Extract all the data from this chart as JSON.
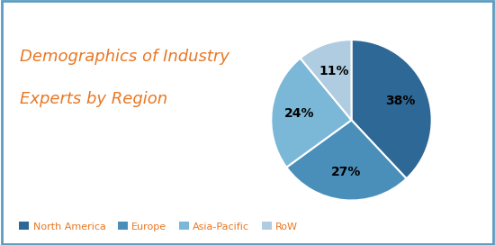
{
  "title_line1": "Demographics of Industry",
  "title_line2": "Experts by Region",
  "title_color": "#E87722",
  "title_fontsize": 13,
  "slices": [
    38,
    27,
    24,
    11
  ],
  "labels": [
    "North America",
    "Europe",
    "Asia-Pacific",
    "RoW"
  ],
  "pct_labels": [
    "38%",
    "27%",
    "24%",
    "11%"
  ],
  "colors": [
    "#2E6896",
    "#4A8FBA",
    "#7BB8D8",
    "#B0CCE0"
  ],
  "legend_text_color": "#E87722",
  "background_color": "#FFFFFF",
  "border_color": "#5B9DC0",
  "startangle": 90,
  "figsize": [
    5.5,
    2.72
  ]
}
